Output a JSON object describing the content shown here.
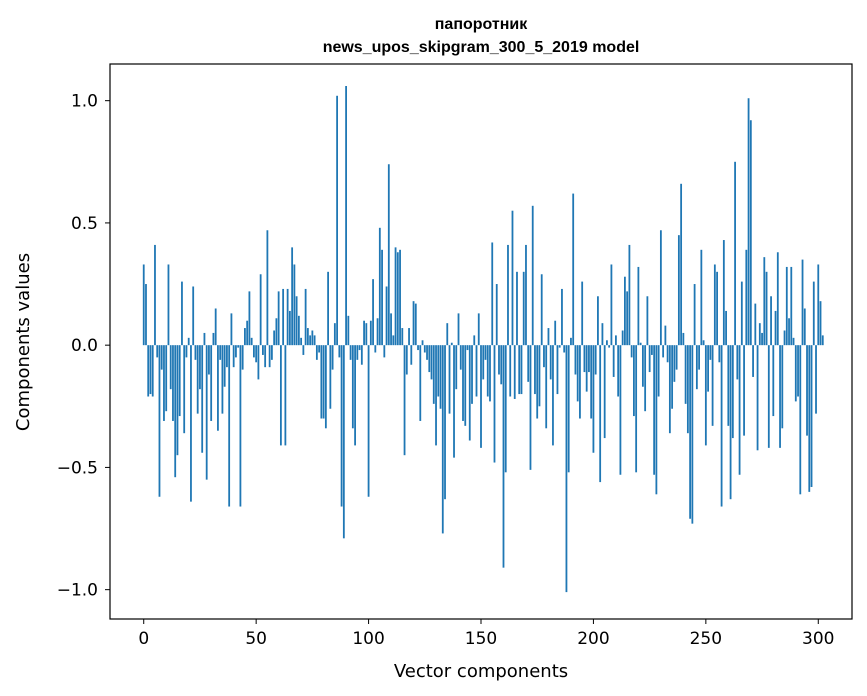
{
  "chart_data": {
    "type": "bar",
    "title": "папоротник",
    "subtitle": "news_upos_skipgram_300_5_2019 model",
    "xlabel": "Vector components",
    "ylabel": "Components values",
    "xlim": [
      -15,
      315
    ],
    "ylim": [
      -1.12,
      1.15
    ],
    "grid": false,
    "bar_color": "#1f77b4",
    "xticks": [
      {
        "value": 0,
        "label": "0"
      },
      {
        "value": 50,
        "label": "50"
      },
      {
        "value": 100,
        "label": "100"
      },
      {
        "value": 150,
        "label": "150"
      },
      {
        "value": 200,
        "label": "200"
      },
      {
        "value": 250,
        "label": "250"
      },
      {
        "value": 300,
        "label": "300"
      }
    ],
    "yticks": [
      {
        "value": -1.0,
        "label": "−1.0"
      },
      {
        "value": -0.5,
        "label": "−0.5"
      },
      {
        "value": 0.0,
        "label": "0.0"
      },
      {
        "value": 0.5,
        "label": "0.5"
      },
      {
        "value": 1.0,
        "label": "1.0"
      }
    ],
    "values": [
      0.33,
      0.25,
      -0.21,
      -0.2,
      -0.21,
      0.41,
      -0.05,
      -0.62,
      -0.1,
      -0.31,
      -0.27,
      0.33,
      -0.18,
      -0.31,
      -0.54,
      -0.45,
      -0.29,
      0.26,
      -0.36,
      -0.05,
      0.03,
      -0.64,
      0.24,
      -0.06,
      -0.28,
      -0.18,
      -0.44,
      0.05,
      -0.55,
      -0.12,
      -0.31,
      0.05,
      0.15,
      -0.35,
      -0.06,
      -0.28,
      -0.17,
      -0.09,
      -0.66,
      0.13,
      -0.09,
      -0.05,
      -0.01,
      -0.66,
      -0.1,
      0.07,
      0.1,
      0.22,
      0.03,
      -0.05,
      -0.07,
      -0.14,
      0.29,
      -0.04,
      -0.09,
      0.47,
      -0.09,
      -0.06,
      0.06,
      0.11,
      0.22,
      -0.41,
      0.23,
      -0.41,
      0.23,
      0.14,
      0.4,
      0.33,
      0.2,
      0.12,
      0.03,
      -0.04,
      0.23,
      0.07,
      0.04,
      0.06,
      0.04,
      -0.06,
      -0.03,
      -0.3,
      -0.3,
      -0.34,
      0.3,
      -0.26,
      -0.1,
      0.09,
      1.02,
      -0.05,
      -0.66,
      -0.79,
      1.06,
      0.12,
      -0.06,
      -0.34,
      -0.41,
      -0.06,
      -0.02,
      -0.08,
      0.1,
      0.09,
      -0.62,
      0.1,
      0.27,
      -0.03,
      0.11,
      0.48,
      0.39,
      -0.05,
      0.24,
      0.74,
      0.13,
      0.04,
      0.4,
      0.38,
      0.39,
      0.07,
      -0.45,
      -0.12,
      0.07,
      -0.08,
      0.18,
      0.17,
      -0.02,
      -0.31,
      0.02,
      -0.03,
      -0.06,
      -0.11,
      -0.14,
      -0.24,
      -0.41,
      -0.21,
      -0.26,
      -0.77,
      -0.63,
      0.09,
      -0.28,
      0.01,
      -0.46,
      -0.18,
      0.13,
      -0.1,
      -0.31,
      -0.33,
      -0.02,
      -0.39,
      -0.24,
      0.04,
      -0.21,
      0.13,
      -0.42,
      -0.14,
      -0.06,
      -0.21,
      -0.23,
      0.42,
      -0.48,
      0.25,
      -0.12,
      -0.16,
      -0.91,
      -0.52,
      0.41,
      -0.21,
      0.55,
      -0.22,
      0.3,
      -0.2,
      -0.2,
      0.3,
      0.41,
      -0.15,
      -0.51,
      0.57,
      -0.2,
      -0.3,
      -0.25,
      0.29,
      -0.09,
      -0.34,
      0.07,
      -0.14,
      -0.41,
      0.1,
      -0.2,
      -0.01,
      0.23,
      -0.03,
      -1.01,
      -0.52,
      0.03,
      0.62,
      -0.12,
      -0.23,
      -0.3,
      0.26,
      -0.11,
      -0.19,
      -0.11,
      -0.3,
      -0.44,
      -0.12,
      0.2,
      -0.56,
      0.09,
      -0.38,
      0.02,
      -0.01,
      0.33,
      -0.13,
      0.04,
      -0.21,
      -0.53,
      0.06,
      0.28,
      0.22,
      0.41,
      -0.05,
      -0.29,
      -0.52,
      0.32,
      0.01,
      -0.17,
      -0.27,
      0.2,
      -0.11,
      -0.04,
      -0.53,
      -0.61,
      -0.21,
      0.47,
      -0.05,
      0.08,
      -0.07,
      -0.36,
      -0.26,
      -0.15,
      -0.1,
      0.45,
      0.66,
      0.05,
      -0.24,
      -0.36,
      -0.71,
      -0.73,
      0.25,
      -0.18,
      -0.1,
      0.39,
      0.02,
      -0.41,
      -0.19,
      -0.06,
      -0.33,
      0.33,
      0.3,
      -0.07,
      -0.66,
      0.43,
      0.14,
      -0.33,
      -0.63,
      -0.38,
      0.75,
      -0.14,
      -0.53,
      0.26,
      -0.37,
      0.39,
      1.01,
      0.92,
      -0.13,
      0.17,
      -0.43,
      0.09,
      0.05,
      0.36,
      0.3,
      -0.42,
      0.2,
      -0.29,
      0.14,
      0.38,
      -0.42,
      -0.34,
      0.06,
      0.32,
      0.11,
      0.32,
      0.03,
      -0.23,
      -0.21,
      -0.61,
      0.35,
      0.15,
      -0.37,
      -0.6,
      -0.58,
      0.26,
      -0.28,
      0.33,
      0.18,
      0.04
    ]
  }
}
